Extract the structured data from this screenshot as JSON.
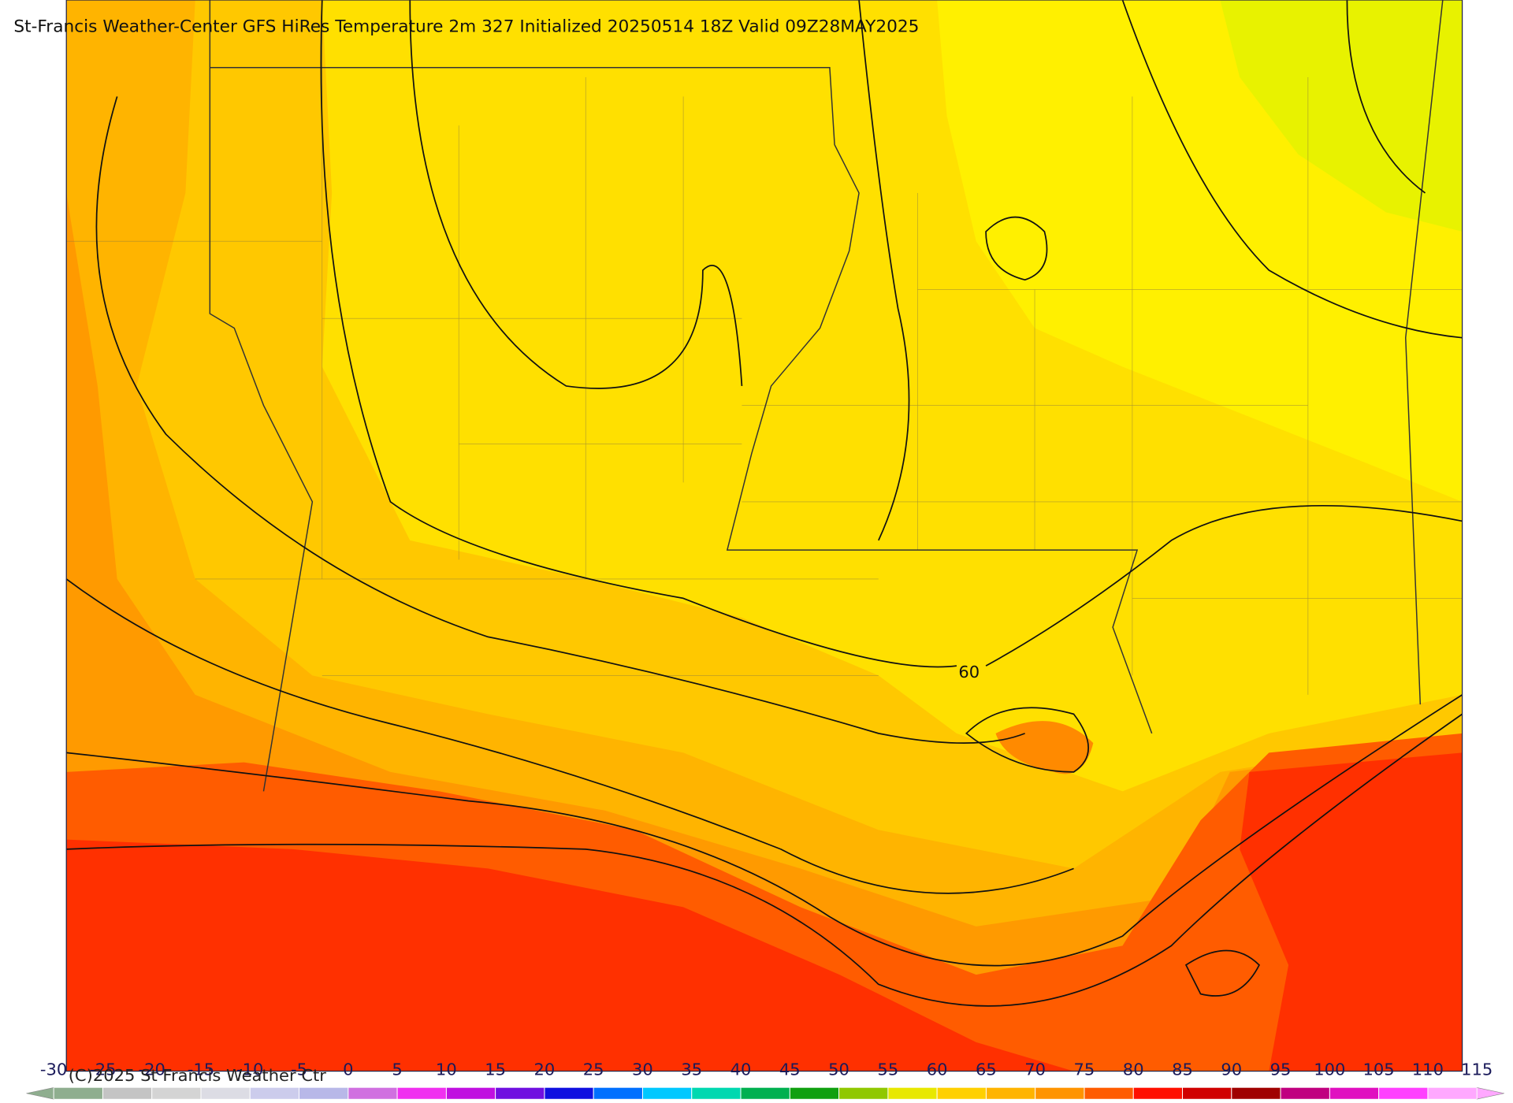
{
  "header": {
    "title": "St-Francis Weather-Center GFS HiRes Temperature 2m  327 Initialized 20250514 18Z Valid 09Z28MAY2025"
  },
  "map": {
    "contour_label": "60",
    "credit": "(C)2025 St Francis Weather Ctr"
  },
  "colorbar": {
    "ticks": [
      -30,
      -25,
      -20,
      -15,
      -10,
      -5,
      0,
      5,
      10,
      15,
      20,
      25,
      30,
      35,
      40,
      45,
      50,
      55,
      60,
      65,
      70,
      75,
      80,
      85,
      90,
      95,
      100,
      105,
      110,
      115
    ],
    "colors": [
      "#8fae8f",
      "#c4c4c4",
      "#d4d4d4",
      "#dcdce4",
      "#ccccec",
      "#b8b8e8",
      "#d070e0",
      "#f030f0",
      "#c010e0",
      "#7010e0",
      "#1010e0",
      "#0070ff",
      "#00c8ff",
      "#00d8b0",
      "#00b050",
      "#10a010",
      "#90c800",
      "#e8e800",
      "#ffd000",
      "#ffb400",
      "#ff9400",
      "#ff5c00",
      "#ff1000",
      "#d00000",
      "#a00000",
      "#c00080",
      "#e010c0",
      "#ff40ff",
      "#ffa8ff"
    ]
  }
}
